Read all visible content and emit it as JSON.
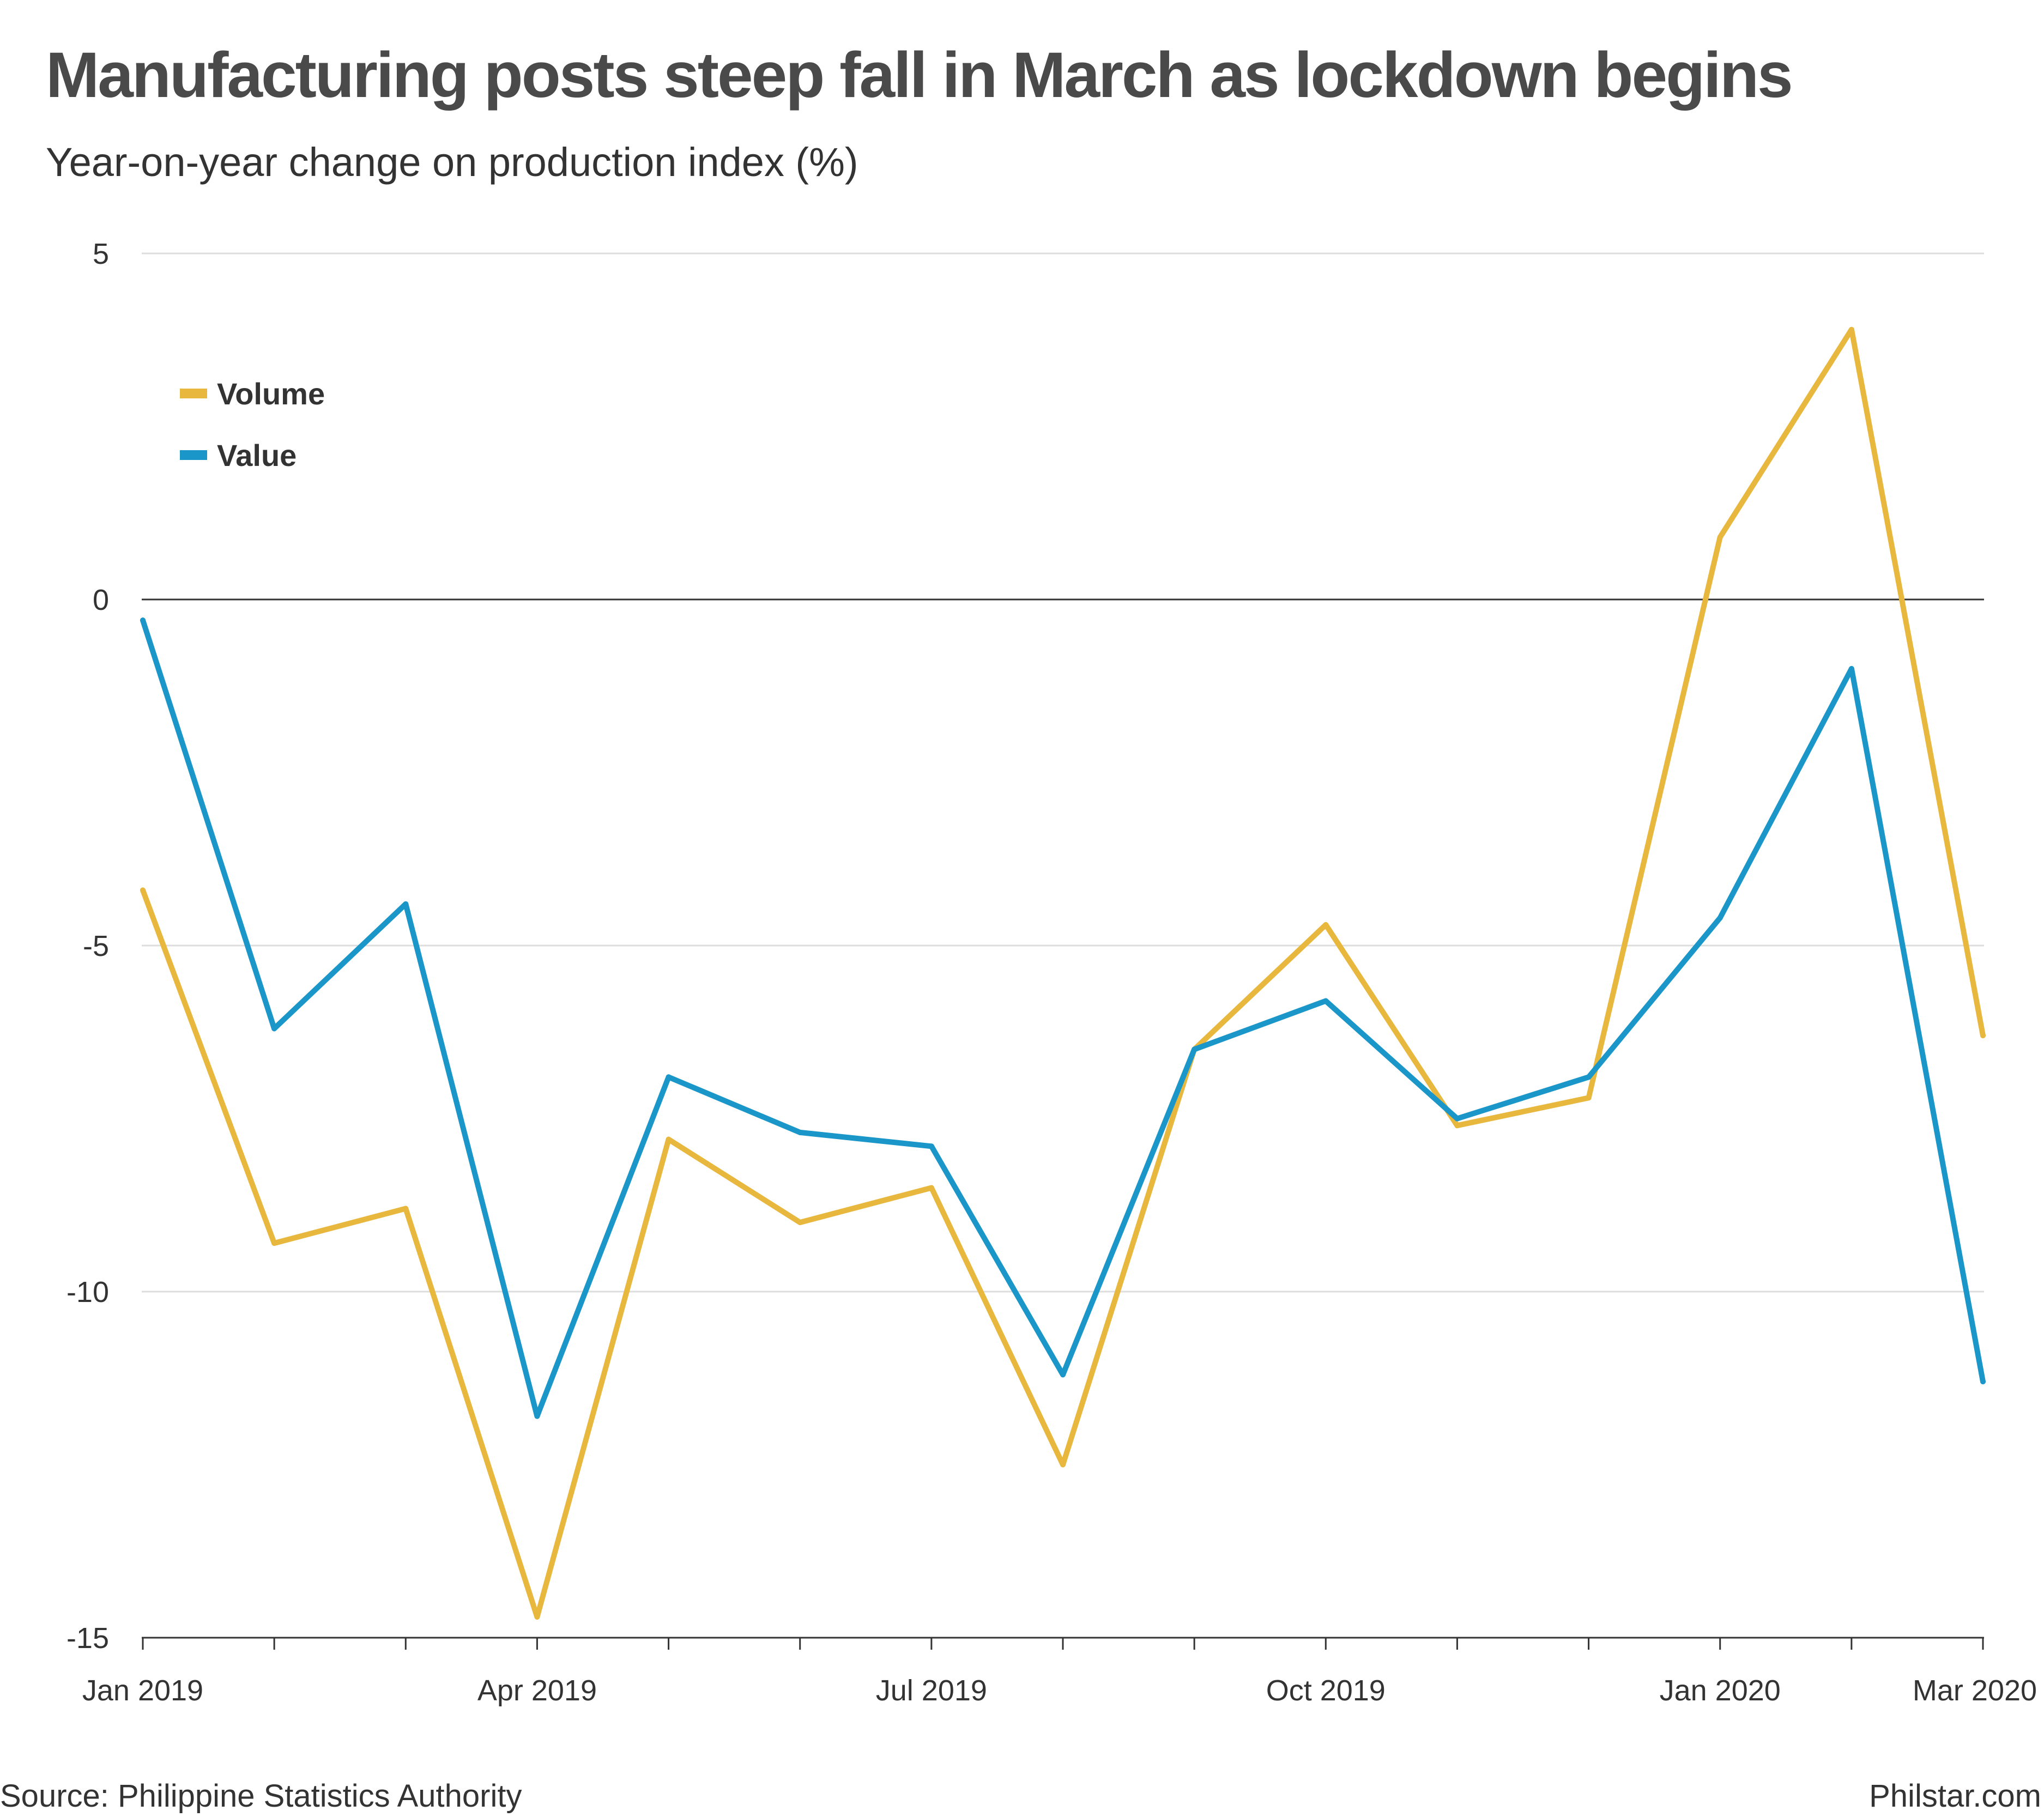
{
  "chart_data": {
    "type": "line",
    "title": "Manufacturing posts steep fall in March as lockdown begins",
    "subtitle": "Year-on-year change on production index (%)",
    "x": [
      "Jan 2019",
      "Feb 2019",
      "Mar 2019",
      "Apr 2019",
      "May 2019",
      "Jun 2019",
      "Jul 2019",
      "Aug 2019",
      "Sep 2019",
      "Oct 2019",
      "Nov 2019",
      "Dec 2019",
      "Jan 2020",
      "Feb 2020",
      "Mar 2020"
    ],
    "x_tick_labels": [
      "Jan 2019",
      "Apr 2019",
      "Jul 2019",
      "Oct 2019",
      "Jan 2020",
      "Mar 2020"
    ],
    "y_ticks": [
      5,
      0,
      -5,
      -10,
      -15
    ],
    "y_tick_labels": [
      "5",
      "0",
      "-5",
      "-10",
      "-15"
    ],
    "ylim": [
      -15,
      5
    ],
    "grid": true,
    "legend_position": "top-left",
    "series": [
      {
        "name": "Volume",
        "color": "#E8B83E",
        "values": [
          -4.2,
          -9.3,
          -8.8,
          -14.7,
          -7.8,
          -9.0,
          -8.5,
          -12.5,
          -6.5,
          -4.7,
          -7.6,
          -7.2,
          0.9,
          3.9,
          -6.3
        ]
      },
      {
        "name": "Value",
        "color": "#1A96C8",
        "values": [
          -0.3,
          -6.2,
          -4.4,
          -11.8,
          -6.9,
          -7.7,
          -7.9,
          -11.2,
          -6.5,
          -5.8,
          -7.5,
          -6.9,
          -4.6,
          -1.0,
          -11.3
        ]
      }
    ],
    "zero_line_color": "#333333",
    "grid_color": "#dddddd"
  },
  "footer": {
    "source": "Source: Philippine Statistics Authority",
    "credit": "Philstar.com"
  }
}
